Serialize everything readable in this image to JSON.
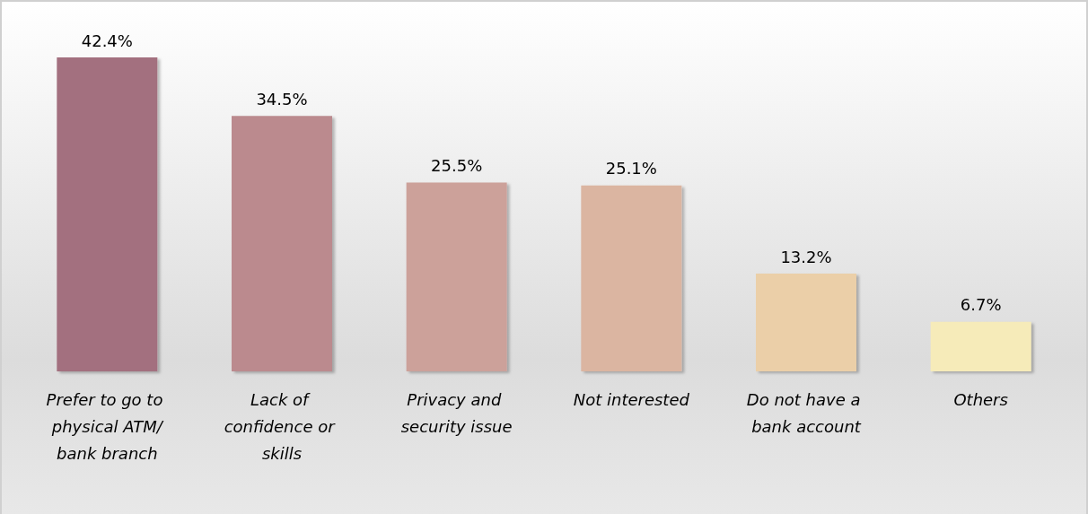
{
  "chart_data": {
    "type": "bar",
    "categories": [
      "Prefer to go to physical ATM/bank branch",
      "Lack of confidence or skills",
      "Privacy and security issue",
      "Not interested",
      "Do not have a bank account",
      "Others"
    ],
    "values": [
      42.4,
      34.5,
      25.5,
      25.1,
      13.2,
      6.7
    ],
    "colors": [
      "#a36f7f",
      "#bb8a8e",
      "#cca19a",
      "#dbb5a1",
      "#ebcfa8",
      "#f6ebb9"
    ],
    "value_labels": [
      "42.4%",
      "34.5%",
      "25.5%",
      "25.1%",
      "13.2%",
      "6.7%"
    ]
  }
}
